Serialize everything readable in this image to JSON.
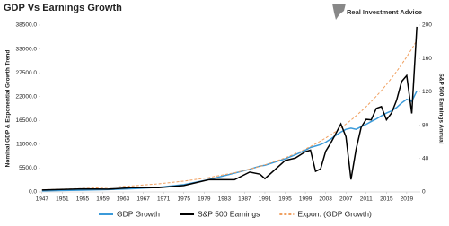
{
  "chart_data": {
    "type": "line",
    "title": "GDP Vs Earnings Growth",
    "logo_text": "Real Investment Advice",
    "y_label": "Nominal GDP & Exponential Growth Trend",
    "y2_label": "S&P 500 Earnings Annual",
    "x": [
      1947,
      1950,
      1955,
      1960,
      1965,
      1970,
      1975,
      1980,
      1985,
      1988,
      1990,
      1991,
      1995,
      1997,
      1999,
      2000,
      2001,
      2002,
      2003,
      2004,
      2005,
      2006,
      2007,
      2008,
      2009,
      2010,
      2011,
      2012,
      2013,
      2014,
      2015,
      2016,
      2017,
      2018,
      2019,
      2020,
      2021
    ],
    "series": [
      {
        "name": "GDP Growth",
        "color": "#3b9ad9",
        "style": "solid",
        "values": [
          244,
          300,
          426,
          543,
          743,
          1073,
          1685,
          2857,
          4339,
          5236,
          5963,
          6158,
          7640,
          8577,
          9631,
          10252,
          10582,
          10936,
          11458,
          12214,
          13037,
          13815,
          14452,
          14713,
          14449,
          15049,
          15600,
          16254,
          16843,
          17551,
          18206,
          18695,
          19480,
          20527,
          21373,
          20894,
          23315
        ]
      },
      {
        "name": "S&P 500 Earnings",
        "color": "#000000",
        "style": "solid",
        "axis": "y2",
        "values": [
          2.3,
          2.8,
          3.6,
          3.3,
          5.2,
          5.1,
          7.7,
          14.8,
          14.6,
          23.8,
          21.3,
          15.9,
          37.7,
          40.6,
          48.2,
          50,
          24.7,
          27.6,
          48.7,
          58.6,
          69.9,
          81.5,
          66.2,
          14.9,
          51,
          77.4,
          87,
          86.5,
          100.2,
          102.3,
          86.5,
          94.5,
          109.9,
          132.4,
          139.5,
          94.1,
          197.9
        ]
      },
      {
        "name": "Expon. (GDP Growth)",
        "color": "#f0a060",
        "style": "dashed",
        "values": [
          500,
          594,
          791,
          1054,
          1405,
          1872,
          2494,
          3324,
          4429,
          5259,
          5900,
          6249,
          7862,
          8820,
          9894,
          10474,
          11098,
          11748,
          12441,
          13178,
          13955,
          14787,
          15656,
          16580,
          17560,
          18598,
          19700,
          20860,
          22090,
          23400,
          24780,
          26250,
          27800,
          29440,
          31180,
          33020,
          34980
        ]
      }
    ],
    "xlim": [
      1946.5,
      2021.5
    ],
    "xticks": [
      1947,
      1951,
      1955,
      1959,
      1963,
      1967,
      1971,
      1975,
      1979,
      1983,
      1987,
      1991,
      1995,
      1999,
      2003,
      2007,
      2011,
      2015,
      2019
    ],
    "ylim": [
      0,
      38500
    ],
    "yticks": [
      {
        "value": 0,
        "label": "0.0"
      },
      {
        "value": 5500,
        "label": "5500.0"
      },
      {
        "value": 11000,
        "label": "11000.0"
      },
      {
        "value": 16500,
        "label": "16500.0"
      },
      {
        "value": 22000,
        "label": "22000.0"
      },
      {
        "value": 27500,
        "label": "27500.0"
      },
      {
        "value": 33000,
        "label": "33000.0"
      },
      {
        "value": 38500,
        "label": "38500.0"
      }
    ],
    "y2lim": [
      0,
      200
    ],
    "y2ticks": [
      0,
      40,
      80,
      120,
      160,
      200
    ],
    "legend": "bottom"
  }
}
